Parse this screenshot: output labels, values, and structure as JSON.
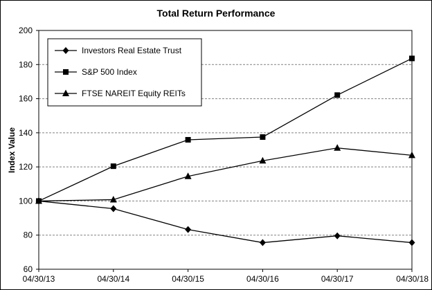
{
  "chart_data": {
    "type": "line",
    "title": "Total Return Performance",
    "xlabel": "",
    "ylabel": "Index Value",
    "categories": [
      "04/30/13",
      "04/30/14",
      "04/30/15",
      "04/30/16",
      "04/30/17",
      "04/30/18"
    ],
    "ylim": [
      60,
      200
    ],
    "yticks": [
      60,
      80,
      100,
      120,
      140,
      160,
      180,
      200
    ],
    "grid": true,
    "legend_position": "top-left",
    "series": [
      {
        "name": "Investors Real Estate Trust",
        "marker": "diamond",
        "values": [
          100,
          95.5,
          83.3,
          75.6,
          79.6,
          75.6
        ]
      },
      {
        "name": "S&P 500 Index",
        "marker": "square",
        "values": [
          100,
          120.4,
          135.9,
          137.5,
          162.1,
          183.6
        ]
      },
      {
        "name": "FTSE NAREIT Equity REITs",
        "marker": "triangle",
        "values": [
          100,
          100.8,
          114.5,
          123.6,
          131.1,
          126.8
        ]
      }
    ],
    "colors": {
      "line": "#000000",
      "grid": "#808080"
    }
  }
}
